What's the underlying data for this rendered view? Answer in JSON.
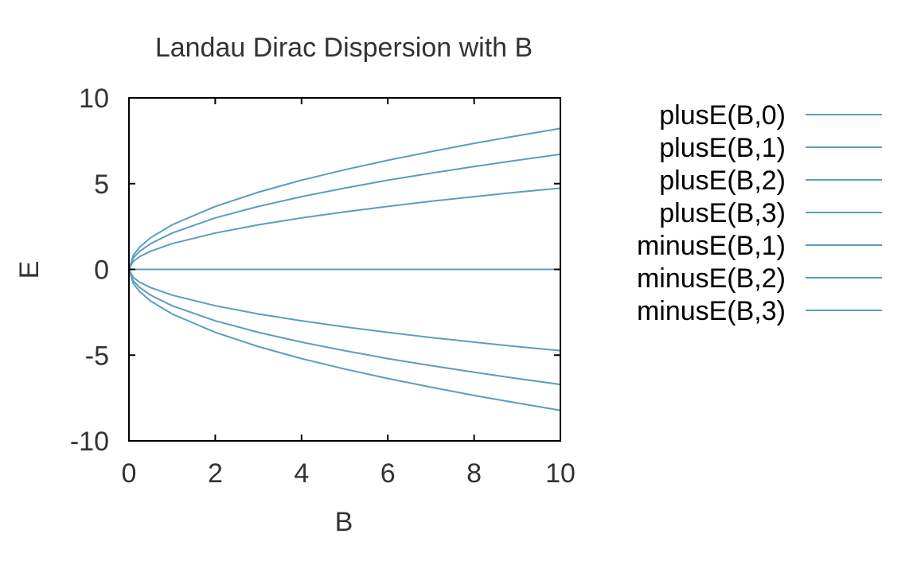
{
  "chart_data": {
    "type": "line",
    "title": "Landau Dirac Dispersion with B",
    "xlabel": "B",
    "ylabel": "E",
    "xlim": [
      0,
      10
    ],
    "ylim": [
      -10,
      10
    ],
    "xticks": [
      "0",
      "2",
      "4",
      "6",
      "8",
      "10"
    ],
    "yticks": [
      "10",
      "5",
      "0",
      "-5",
      "-10"
    ],
    "grid": false,
    "legend_position": "outside-right",
    "line_color": "#5a9ebf",
    "x": [
      0,
      0.1,
      0.25,
      0.5,
      1,
      2,
      3,
      4,
      5,
      6,
      7,
      8,
      9,
      10
    ],
    "series": [
      {
        "name": "plusE(B,0)",
        "values": [
          0,
          0,
          0,
          0,
          0,
          0,
          0,
          0,
          0,
          0,
          0,
          0,
          0,
          0
        ]
      },
      {
        "name": "plusE(B,1)",
        "values": [
          0,
          0.47,
          0.75,
          1.06,
          1.5,
          2.12,
          2.6,
          3.0,
          3.35,
          3.67,
          3.97,
          4.24,
          4.5,
          4.74
        ]
      },
      {
        "name": "plusE(B,2)",
        "values": [
          0,
          0.67,
          1.06,
          1.5,
          2.12,
          3.0,
          3.67,
          4.24,
          4.74,
          5.2,
          5.61,
          6.0,
          6.36,
          6.71
        ]
      },
      {
        "name": "plusE(B,3)",
        "values": [
          0,
          0.82,
          1.3,
          1.84,
          2.6,
          3.67,
          4.5,
          5.2,
          5.81,
          6.36,
          6.87,
          7.35,
          7.79,
          8.22
        ]
      },
      {
        "name": "minusE(B,1)",
        "values": [
          0,
          -0.47,
          -0.75,
          -1.06,
          -1.5,
          -2.12,
          -2.6,
          -3.0,
          -3.35,
          -3.67,
          -3.97,
          -4.24,
          -4.5,
          -4.74
        ]
      },
      {
        "name": "minusE(B,2)",
        "values": [
          0,
          -0.67,
          -1.06,
          -1.5,
          -2.12,
          -3.0,
          -3.67,
          -4.24,
          -4.74,
          -5.2,
          -5.61,
          -6.0,
          -6.36,
          -6.71
        ]
      },
      {
        "name": "minusE(B,3)",
        "values": [
          0,
          -0.82,
          -1.3,
          -1.84,
          -2.6,
          -3.67,
          -4.5,
          -5.2,
          -5.81,
          -6.36,
          -6.87,
          -7.35,
          -7.79,
          -8.22
        ]
      }
    ]
  }
}
